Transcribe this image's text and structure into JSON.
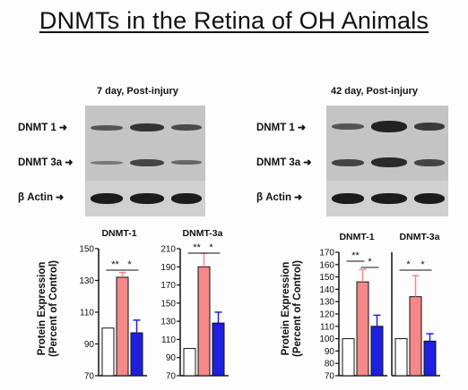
{
  "title": "DNMTs in the Retina of OH Animals",
  "panels": [
    {
      "title": "7 day, Post-injury",
      "blot_labels": [
        "DNMT 1",
        "DNMT 3a",
        "β Actin"
      ]
    },
    {
      "title": "42 day, Post-injury",
      "blot_labels": [
        "DNMT 1",
        "DNMT 3a",
        "β Actin"
      ]
    }
  ],
  "ylabel_line1": "Protein Expression",
  "ylabel_line2": "(Percent of Control)",
  "colors": {
    "control": "#ffffff",
    "injury": "#f4888a",
    "treatment": "#1f1fe0",
    "axis": "#111111"
  },
  "chart_data": [
    {
      "type": "bar",
      "title": "DNMT-1",
      "categories": [
        "",
        "",
        ""
      ],
      "values": [
        100,
        132,
        97
      ],
      "errors": [
        0,
        3,
        8
      ],
      "ylim": [
        70,
        150
      ],
      "yticks": [
        70,
        90,
        110,
        130,
        150
      ],
      "significance": [
        "**",
        "*"
      ]
    },
    {
      "type": "bar",
      "title": "DNMT-3a",
      "categories": [
        "",
        "",
        ""
      ],
      "values": [
        100,
        190,
        128
      ],
      "errors": [
        0,
        15,
        12
      ],
      "ylim": [
        70,
        210
      ],
      "yticks": [
        70,
        90,
        110,
        130,
        150,
        170,
        190,
        210
      ],
      "significance": [
        "**",
        "*"
      ]
    },
    {
      "type": "bar",
      "title": "DNMT-1",
      "categories": [
        "",
        "",
        ""
      ],
      "values": [
        100,
        146,
        110
      ],
      "errors": [
        0,
        10,
        9
      ],
      "ylim": [
        70,
        170
      ],
      "yticks": [
        70,
        80,
        90,
        100,
        110,
        120,
        130,
        140,
        150,
        160,
        170
      ],
      "significance": [
        "**",
        "*"
      ]
    },
    {
      "type": "bar",
      "title": "DNMT-3a",
      "categories": [
        "",
        "",
        ""
      ],
      "values": [
        100,
        134,
        98
      ],
      "errors": [
        0,
        17,
        6
      ],
      "ylim": [
        70,
        170
      ],
      "yticks": [],
      "significance": [
        "*",
        "*"
      ]
    }
  ]
}
